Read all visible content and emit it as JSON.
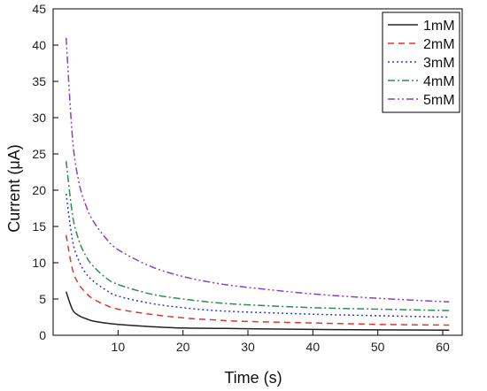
{
  "chart_data": {
    "type": "line",
    "title": "",
    "xlabel": "Time (s)",
    "ylabel": "Current (μA)",
    "xlim": [
      0,
      63
    ],
    "ylim": [
      0,
      45
    ],
    "xticks": [
      10,
      20,
      30,
      40,
      50,
      60
    ],
    "yticks": [
      0,
      5,
      10,
      15,
      20,
      25,
      30,
      35,
      40,
      45
    ],
    "grid": false,
    "legend_position": "top-right",
    "x": [
      2,
      3,
      4,
      5,
      6,
      8,
      10,
      15,
      20,
      25,
      30,
      40,
      50,
      61
    ],
    "series": [
      {
        "name": "1mM",
        "color": "#222222",
        "dash": "solid",
        "values": [
          6.0,
          3.5,
          2.7,
          2.3,
          2.0,
          1.7,
          1.5,
          1.2,
          1.0,
          0.95,
          0.9,
          0.8,
          0.75,
          0.7
        ]
      },
      {
        "name": "2mM",
        "color": "#e8332a",
        "dash": "dashed",
        "values": [
          13.8,
          9.0,
          7.0,
          5.9,
          5.1,
          4.2,
          3.6,
          2.9,
          2.4,
          2.1,
          1.9,
          1.7,
          1.5,
          1.4
        ]
      },
      {
        "name": "3mM",
        "color": "#2a3bd6",
        "dash": "dotted",
        "values": [
          19.5,
          13.0,
          10.2,
          8.6,
          7.6,
          6.3,
          5.4,
          4.4,
          3.8,
          3.4,
          3.2,
          2.9,
          2.7,
          2.5
        ]
      },
      {
        "name": "4mM",
        "color": "#2e8b57",
        "dash": "dashdot",
        "values": [
          24.0,
          16.5,
          13.0,
          11.0,
          9.7,
          8.0,
          7.0,
          5.7,
          5.0,
          4.5,
          4.2,
          3.8,
          3.6,
          3.4
        ]
      },
      {
        "name": "5mM",
        "color": "#8b3fc7",
        "dash": "dashdotdot",
        "values": [
          41.0,
          27.0,
          21.0,
          18.0,
          16.0,
          13.5,
          11.8,
          9.5,
          8.1,
          7.2,
          6.6,
          5.7,
          5.1,
          4.6
        ]
      }
    ]
  }
}
